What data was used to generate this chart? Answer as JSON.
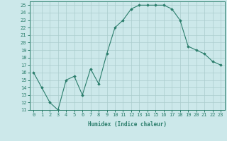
{
  "title": "",
  "xlabel": "Humidex (Indice chaleur)",
  "ylabel": "",
  "x": [
    0,
    1,
    2,
    3,
    4,
    5,
    6,
    7,
    8,
    9,
    10,
    11,
    12,
    13,
    14,
    15,
    16,
    17,
    18,
    19,
    20,
    21,
    22,
    23
  ],
  "y": [
    16.0,
    14.0,
    12.0,
    11.0,
    15.0,
    15.5,
    13.0,
    16.5,
    14.5,
    18.5,
    22.0,
    23.0,
    24.5,
    25.0,
    25.0,
    25.0,
    25.0,
    24.5,
    23.0,
    19.5,
    19.0,
    18.5,
    17.5,
    17.0
  ],
  "line_color": "#2a7d6b",
  "marker": "D",
  "marker_size": 1.8,
  "bg_color": "#cce8ea",
  "grid_color": "#aacccc",
  "ylim": [
    11,
    25.5
  ],
  "xlim": [
    -0.5,
    23.5
  ],
  "yticks": [
    11,
    12,
    13,
    14,
    15,
    16,
    17,
    18,
    19,
    20,
    21,
    22,
    23,
    24,
    25
  ],
  "xticks": [
    0,
    1,
    2,
    3,
    4,
    5,
    6,
    7,
    8,
    9,
    10,
    11,
    12,
    13,
    14,
    15,
    16,
    17,
    18,
    19,
    20,
    21,
    22,
    23
  ],
  "tick_color": "#2a7d6b",
  "label_fontsize": 5.5,
  "tick_fontsize": 5.0,
  "linewidth": 0.8
}
